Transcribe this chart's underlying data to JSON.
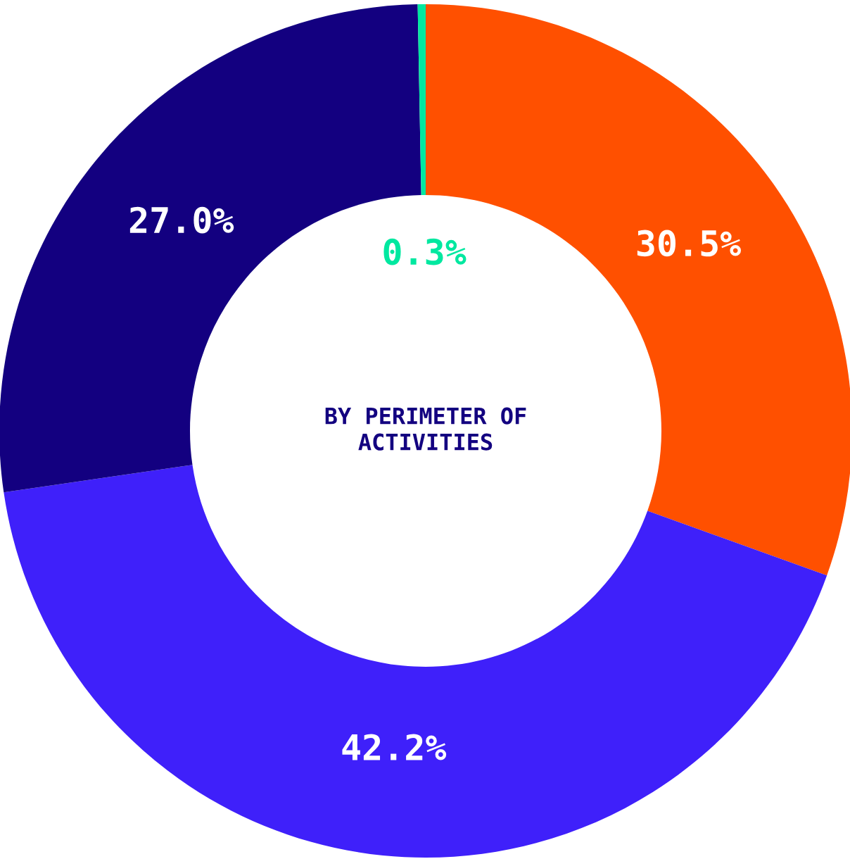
{
  "chart_data": {
    "type": "donut",
    "title": "BY PERIMETER OF\nACTIVITIES",
    "categories": [
      null,
      null,
      null,
      null
    ],
    "values": [
      30.5,
      42.2,
      27.0,
      0.3
    ],
    "colors": [
      "#ff5000",
      "#3f20fa",
      "#130080",
      "#00e8a0"
    ],
    "value_labels": [
      "30.5%",
      "42.2%",
      "27.0%",
      "0.3%"
    ],
    "legend": false
  }
}
